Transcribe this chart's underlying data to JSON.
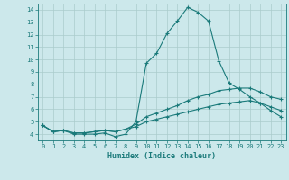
{
  "xlabel": "Humidex (Indice chaleur)",
  "ylabel": "",
  "xlim": [
    -0.5,
    23.5
  ],
  "ylim": [
    3.5,
    14.5
  ],
  "xticks": [
    0,
    1,
    2,
    3,
    4,
    5,
    6,
    7,
    8,
    9,
    10,
    11,
    12,
    13,
    14,
    15,
    16,
    17,
    18,
    19,
    20,
    21,
    22,
    23
  ],
  "yticks": [
    4,
    5,
    6,
    7,
    8,
    9,
    10,
    11,
    12,
    13,
    14
  ],
  "background_color": "#cce8eb",
  "grid_color": "#aacccc",
  "line_color": "#1a7a7a",
  "line1_x": [
    0,
    1,
    2,
    3,
    4,
    5,
    6,
    7,
    8,
    9,
    10,
    11,
    12,
    13,
    14,
    15,
    16,
    17,
    18,
    19,
    20,
    21,
    22,
    23
  ],
  "line1_y": [
    4.7,
    4.2,
    4.3,
    4.0,
    4.0,
    4.0,
    4.1,
    3.8,
    4.0,
    5.0,
    9.7,
    10.5,
    12.1,
    13.1,
    14.2,
    13.8,
    13.1,
    9.9,
    8.1,
    7.6,
    7.0,
    6.5,
    5.9,
    5.4
  ],
  "line2_x": [
    0,
    1,
    2,
    3,
    4,
    5,
    6,
    7,
    8,
    9,
    10,
    11,
    12,
    13,
    14,
    15,
    16,
    17,
    18,
    19,
    20,
    21,
    22,
    23
  ],
  "line2_y": [
    4.7,
    4.2,
    4.3,
    4.1,
    4.1,
    4.2,
    4.3,
    4.2,
    4.4,
    4.8,
    5.4,
    5.7,
    6.0,
    6.3,
    6.7,
    7.0,
    7.2,
    7.5,
    7.6,
    7.7,
    7.7,
    7.4,
    7.0,
    6.8
  ],
  "line3_x": [
    0,
    1,
    2,
    3,
    4,
    5,
    6,
    7,
    8,
    9,
    10,
    11,
    12,
    13,
    14,
    15,
    16,
    17,
    18,
    19,
    20,
    21,
    22,
    23
  ],
  "line3_y": [
    4.7,
    4.2,
    4.3,
    4.1,
    4.1,
    4.2,
    4.3,
    4.2,
    4.4,
    4.6,
    5.0,
    5.2,
    5.4,
    5.6,
    5.8,
    6.0,
    6.2,
    6.4,
    6.5,
    6.6,
    6.7,
    6.5,
    6.2,
    5.9
  ],
  "tick_fontsize": 5.0,
  "xlabel_fontsize": 6.0
}
